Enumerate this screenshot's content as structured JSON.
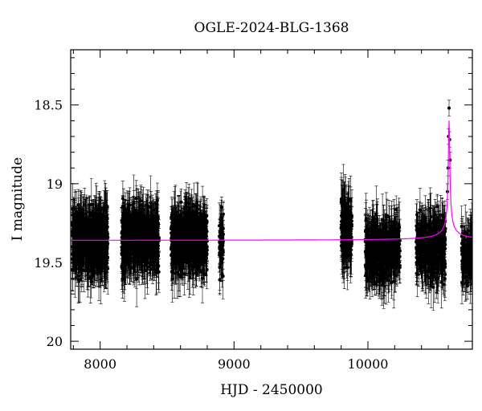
{
  "chart_data": {
    "type": "scatter",
    "title": "OGLE-2024-BLG-1368",
    "xlabel": "HJD - 2450000",
    "ylabel": "I magnitude",
    "xlim": [
      7780,
      10780
    ],
    "ylim": [
      20.05,
      18.15
    ],
    "y_inverted": true,
    "x_ticks": [
      8000,
      9000,
      10000
    ],
    "y_ticks": [
      18.5,
      19,
      19.5,
      20
    ],
    "y_tick_labels": [
      "18.5",
      "19",
      "19.5",
      "20"
    ],
    "colors": {
      "points": "#000000",
      "errorbars": "#000000",
      "model": "#ff00ff"
    },
    "model": {
      "baseline_mag": 19.36,
      "peak_mag": 18.6,
      "t0": 10606,
      "tE": 8
    },
    "season_clusters": [
      {
        "x_start": 7790,
        "x_end": 8060,
        "mag_center": 19.36,
        "mag_spread": 0.17,
        "n": 700
      },
      {
        "x_start": 8160,
        "x_end": 8440,
        "mag_center": 19.35,
        "mag_spread": 0.16,
        "n": 700
      },
      {
        "x_start": 8530,
        "x_end": 8800,
        "mag_center": 19.35,
        "mag_spread": 0.16,
        "n": 650
      },
      {
        "x_start": 8890,
        "x_end": 8920,
        "mag_center": 19.37,
        "mag_spread": 0.15,
        "n": 60
      },
      {
        "x_start": 9800,
        "x_end": 9880,
        "mag_center": 19.3,
        "mag_spread": 0.17,
        "n": 180
      },
      {
        "x_start": 9980,
        "x_end": 10240,
        "mag_center": 19.42,
        "mag_spread": 0.16,
        "n": 500
      },
      {
        "x_start": 10360,
        "x_end": 10580,
        "mag_center": 19.4,
        "mag_spread": 0.16,
        "n": 420
      },
      {
        "x_start": 10700,
        "x_end": 10780,
        "mag_center": 19.45,
        "mag_spread": 0.13,
        "n": 120
      }
    ],
    "event_points": [
      {
        "x": 10606,
        "y": 18.52
      },
      {
        "x": 10602,
        "y": 18.7
      },
      {
        "x": 10610,
        "y": 18.72
      },
      {
        "x": 10598,
        "y": 18.9
      },
      {
        "x": 10614,
        "y": 18.85
      },
      {
        "x": 10594,
        "y": 19.05
      }
    ]
  }
}
